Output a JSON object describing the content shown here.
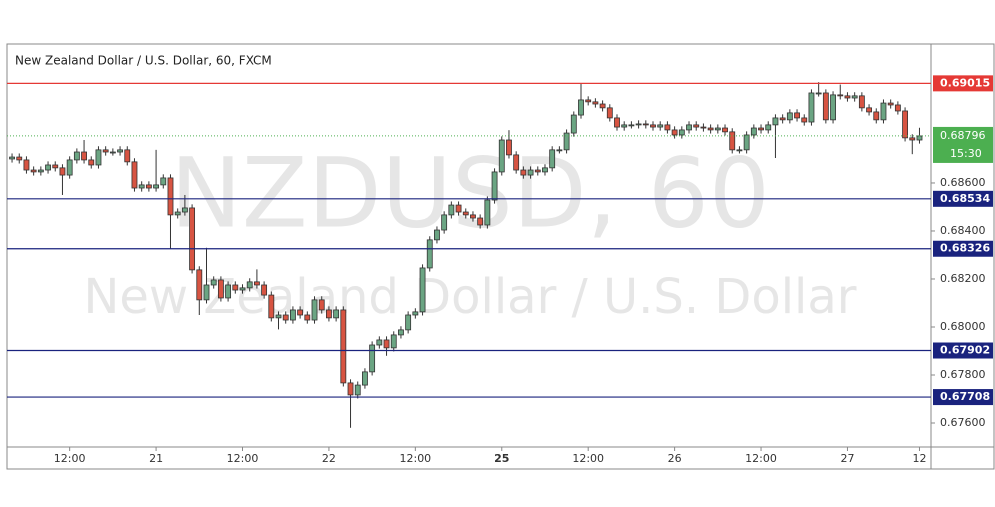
{
  "chart_data": {
    "type": "candlestick",
    "title": "New Zealand Dollar / U.S. Dollar, 60, FXCM",
    "watermark": "NZDUSD, 60",
    "watermark_subtitle": "New Zealand Dollar / U.S. Dollar",
    "up_color": "#6ba583",
    "down_color": "#d75442",
    "xlim": [
      -0.7,
      127.6
    ],
    "xticks": [
      {
        "value": 8,
        "label": "12:00"
      },
      {
        "value": 20,
        "label": "21"
      },
      {
        "value": 32,
        "label": "12:00"
      },
      {
        "value": 44,
        "label": "22"
      },
      {
        "value": 56,
        "label": "12:00"
      },
      {
        "value": 68,
        "label": "25"
      },
      {
        "value": 80,
        "label": "12:00"
      },
      {
        "value": 92,
        "label": "26"
      },
      {
        "value": 104,
        "label": "12:00"
      },
      {
        "value": 116,
        "label": "27"
      },
      {
        "value": 126,
        "label": "12"
      }
    ],
    "ylim": [
      0.675,
      0.69179
    ],
    "yticks": [
      {
        "value": 0.686,
        "label": "0.68600"
      },
      {
        "value": 0.684,
        "label": "0.68400"
      },
      {
        "value": 0.682,
        "label": "0.68200"
      },
      {
        "value": 0.68,
        "label": "0.68000"
      },
      {
        "value": 0.678,
        "label": "0.67800"
      },
      {
        "value": 0.676,
        "label": "0.67600"
      }
    ],
    "levels": [
      {
        "value": 0.69015,
        "color": "#e53935"
      },
      {
        "value": 0.68534,
        "color": "#1a237e"
      },
      {
        "value": 0.68326,
        "color": "#1a237e"
      },
      {
        "value": 0.67902,
        "color": "#1a237e"
      },
      {
        "value": 0.67708,
        "color": "#1a237e"
      }
    ],
    "last": {
      "value": 0.68796,
      "time": "15:30",
      "color": "#4caf50"
    },
    "ohlc": [
      [
        0.687,
        0.68723,
        0.68685,
        0.68708
      ],
      [
        0.68708,
        0.68723,
        0.68681,
        0.68696
      ],
      [
        0.68696,
        0.68711,
        0.68639,
        0.68654
      ],
      [
        0.68654,
        0.68669,
        0.68631,
        0.68646
      ],
      [
        0.68646,
        0.68669,
        0.68631,
        0.68654
      ],
      [
        0.68654,
        0.6869,
        0.68639,
        0.68675
      ],
      [
        0.68675,
        0.6869,
        0.68648,
        0.68663
      ],
      [
        0.68663,
        0.68678,
        0.6855,
        0.68633
      ],
      [
        0.68633,
        0.68711,
        0.68618,
        0.68696
      ],
      [
        0.68696,
        0.68744,
        0.68681,
        0.68729
      ],
      [
        0.68729,
        0.68779,
        0.68681,
        0.68696
      ],
      [
        0.68696,
        0.68711,
        0.6866,
        0.68675
      ],
      [
        0.68675,
        0.68753,
        0.6866,
        0.68738
      ],
      [
        0.68738,
        0.68753,
        0.68714,
        0.68729
      ],
      [
        0.68729,
        0.68744,
        0.68714,
        0.68729
      ],
      [
        0.68729,
        0.68753,
        0.68714,
        0.68738
      ],
      [
        0.68738,
        0.68753,
        0.68673,
        0.68688
      ],
      [
        0.68688,
        0.68703,
        0.68564,
        0.68579
      ],
      [
        0.68579,
        0.68607,
        0.68564,
        0.68592
      ],
      [
        0.68592,
        0.68607,
        0.68564,
        0.68579
      ],
      [
        0.68579,
        0.68738,
        0.68564,
        0.68592
      ],
      [
        0.68592,
        0.68636,
        0.68577,
        0.68621
      ],
      [
        0.68621,
        0.68636,
        0.68325,
        0.68467
      ],
      [
        0.68467,
        0.68494,
        0.68452,
        0.68479
      ],
      [
        0.68479,
        0.6855,
        0.68464,
        0.68496
      ],
      [
        0.68496,
        0.68511,
        0.68223,
        0.68238
      ],
      [
        0.68238,
        0.68253,
        0.6805,
        0.68113
      ],
      [
        0.68113,
        0.6833,
        0.68098,
        0.68175
      ],
      [
        0.68175,
        0.68211,
        0.6816,
        0.68196
      ],
      [
        0.68196,
        0.68211,
        0.68106,
        0.68121
      ],
      [
        0.68121,
        0.6819,
        0.68106,
        0.68175
      ],
      [
        0.68175,
        0.6819,
        0.68139,
        0.68154
      ],
      [
        0.68154,
        0.68178,
        0.68139,
        0.68163
      ],
      [
        0.68163,
        0.68203,
        0.68148,
        0.68188
      ],
      [
        0.68188,
        0.6824,
        0.6816,
        0.68175
      ],
      [
        0.68175,
        0.6819,
        0.68118,
        0.68133
      ],
      [
        0.68133,
        0.68148,
        0.68023,
        0.68038
      ],
      [
        0.68038,
        0.68065,
        0.6799,
        0.6805
      ],
      [
        0.6805,
        0.68065,
        0.68014,
        0.68029
      ],
      [
        0.68029,
        0.68086,
        0.68014,
        0.68071
      ],
      [
        0.68071,
        0.68086,
        0.68035,
        0.6805
      ],
      [
        0.6805,
        0.68065,
        0.68014,
        0.68029
      ],
      [
        0.68029,
        0.68128,
        0.68014,
        0.68113
      ],
      [
        0.68113,
        0.68128,
        0.68056,
        0.68071
      ],
      [
        0.68071,
        0.68086,
        0.68023,
        0.68038
      ],
      [
        0.68038,
        0.68086,
        0.68023,
        0.68071
      ],
      [
        0.68071,
        0.68086,
        0.67752,
        0.67767
      ],
      [
        0.67767,
        0.67782,
        0.6758,
        0.67717
      ],
      [
        0.67717,
        0.67773,
        0.67702,
        0.67758
      ],
      [
        0.67758,
        0.67828,
        0.67743,
        0.67813
      ],
      [
        0.67813,
        0.6794,
        0.67798,
        0.67925
      ],
      [
        0.67925,
        0.67961,
        0.6791,
        0.67946
      ],
      [
        0.67946,
        0.67961,
        0.6788,
        0.67913
      ],
      [
        0.67913,
        0.67982,
        0.67898,
        0.67967
      ],
      [
        0.67967,
        0.68003,
        0.67952,
        0.67988
      ],
      [
        0.67988,
        0.68065,
        0.67973,
        0.6805
      ],
      [
        0.6805,
        0.68078,
        0.68035,
        0.68063
      ],
      [
        0.68063,
        0.68261,
        0.68048,
        0.68246
      ],
      [
        0.68246,
        0.68378,
        0.68231,
        0.68363
      ],
      [
        0.68363,
        0.68419,
        0.68348,
        0.68404
      ],
      [
        0.68404,
        0.68482,
        0.68389,
        0.68467
      ],
      [
        0.68467,
        0.68523,
        0.68452,
        0.68508
      ],
      [
        0.68508,
        0.68523,
        0.68464,
        0.68479
      ],
      [
        0.68479,
        0.68494,
        0.68452,
        0.68467
      ],
      [
        0.68467,
        0.68482,
        0.68439,
        0.68454
      ],
      [
        0.68454,
        0.68469,
        0.6841,
        0.68425
      ],
      [
        0.68425,
        0.68544,
        0.6841,
        0.68529
      ],
      [
        0.68529,
        0.68661,
        0.68514,
        0.68646
      ],
      [
        0.68646,
        0.68794,
        0.68631,
        0.68779
      ],
      [
        0.68779,
        0.6882,
        0.68702,
        0.68717
      ],
      [
        0.68717,
        0.68732,
        0.68639,
        0.68654
      ],
      [
        0.68654,
        0.68669,
        0.68618,
        0.68633
      ],
      [
        0.68633,
        0.68669,
        0.68618,
        0.68654
      ],
      [
        0.68654,
        0.68669,
        0.68631,
        0.68646
      ],
      [
        0.68646,
        0.68678,
        0.68631,
        0.68663
      ],
      [
        0.68663,
        0.68753,
        0.68648,
        0.68738
      ],
      [
        0.68738,
        0.68753,
        0.68723,
        0.68738
      ],
      [
        0.68738,
        0.68823,
        0.68723,
        0.68808
      ],
      [
        0.68808,
        0.68898,
        0.68793,
        0.68883
      ],
      [
        0.68883,
        0.69015,
        0.68868,
        0.68946
      ],
      [
        0.68946,
        0.68961,
        0.68923,
        0.68938
      ],
      [
        0.68938,
        0.68953,
        0.68914,
        0.68929
      ],
      [
        0.68929,
        0.68944,
        0.68898,
        0.68913
      ],
      [
        0.68913,
        0.68928,
        0.68856,
        0.68871
      ],
      [
        0.68871,
        0.68886,
        0.68818,
        0.68833
      ],
      [
        0.68833,
        0.68857,
        0.68818,
        0.68842
      ],
      [
        0.68842,
        0.68857,
        0.68827,
        0.68842
      ],
      [
        0.68842,
        0.68861,
        0.68827,
        0.68846
      ],
      [
        0.68846,
        0.68861,
        0.68827,
        0.68842
      ],
      [
        0.68842,
        0.68857,
        0.68818,
        0.68833
      ],
      [
        0.68833,
        0.68857,
        0.68818,
        0.68842
      ],
      [
        0.68842,
        0.68857,
        0.68806,
        0.68821
      ],
      [
        0.68821,
        0.68836,
        0.68785,
        0.688
      ],
      [
        0.688,
        0.68836,
        0.68785,
        0.68821
      ],
      [
        0.68821,
        0.68857,
        0.68806,
        0.68842
      ],
      [
        0.68842,
        0.68857,
        0.68818,
        0.68833
      ],
      [
        0.68833,
        0.68848,
        0.68814,
        0.68829
      ],
      [
        0.68829,
        0.68844,
        0.68806,
        0.68821
      ],
      [
        0.68821,
        0.68844,
        0.68806,
        0.68829
      ],
      [
        0.68829,
        0.68844,
        0.68798,
        0.68813
      ],
      [
        0.68813,
        0.68828,
        0.68723,
        0.68738
      ],
      [
        0.68738,
        0.68753,
        0.68723,
        0.68738
      ],
      [
        0.68738,
        0.68815,
        0.68723,
        0.688
      ],
      [
        0.688,
        0.68844,
        0.68785,
        0.68829
      ],
      [
        0.68829,
        0.68844,
        0.68806,
        0.68821
      ],
      [
        0.68821,
        0.68857,
        0.68806,
        0.68842
      ],
      [
        0.68842,
        0.68886,
        0.68704,
        0.68871
      ],
      [
        0.68871,
        0.68886,
        0.68848,
        0.68863
      ],
      [
        0.68863,
        0.68907,
        0.68848,
        0.68892
      ],
      [
        0.68892,
        0.68907,
        0.68856,
        0.68871
      ],
      [
        0.68871,
        0.68886,
        0.68839,
        0.68854
      ],
      [
        0.68854,
        0.6899,
        0.68839,
        0.68975
      ],
      [
        0.68975,
        0.6902,
        0.6896,
        0.68975
      ],
      [
        0.68975,
        0.6899,
        0.68848,
        0.68863
      ],
      [
        0.68863,
        0.68982,
        0.68848,
        0.68967
      ],
      [
        0.68967,
        0.6901,
        0.68948,
        0.68963
      ],
      [
        0.68963,
        0.68978,
        0.68939,
        0.68954
      ],
      [
        0.68954,
        0.68978,
        0.68939,
        0.68963
      ],
      [
        0.68963,
        0.68978,
        0.68898,
        0.68913
      ],
      [
        0.68913,
        0.68928,
        0.68881,
        0.68896
      ],
      [
        0.68896,
        0.68911,
        0.68848,
        0.68863
      ],
      [
        0.68863,
        0.68948,
        0.68848,
        0.68933
      ],
      [
        0.68933,
        0.68948,
        0.6891,
        0.68925
      ],
      [
        0.68925,
        0.6894,
        0.68885,
        0.689
      ],
      [
        0.689,
        0.68915,
        0.68773,
        0.68788
      ],
      [
        0.68788,
        0.68803,
        0.6872,
        0.68779
      ],
      [
        0.68779,
        0.6883,
        0.68764,
        0.68796
      ]
    ]
  }
}
